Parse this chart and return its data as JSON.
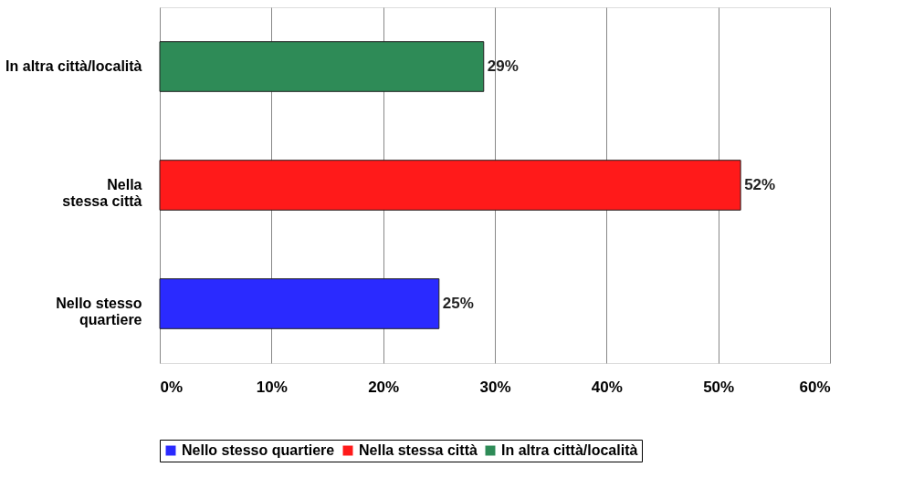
{
  "chart_data": {
    "type": "bar",
    "orientation": "horizontal",
    "categories": [
      "In altra città/località",
      "Nella stessa città",
      "Nello stesso quartiere"
    ],
    "series": [
      {
        "name": "Nello stesso quartiere",
        "color": "#2a2aff",
        "values": [
          null,
          null,
          25
        ],
        "value_labels": [
          null,
          null,
          "25%"
        ]
      },
      {
        "name": "Nella stessa città",
        "color": "#ff1a1a",
        "values": [
          null,
          52,
          null
        ],
        "value_labels": [
          null,
          "52%",
          null
        ]
      },
      {
        "name": "In altra città/località",
        "color": "#2e8b57",
        "values": [
          29,
          null,
          null
        ],
        "value_labels": [
          "29%",
          null,
          null
        ]
      }
    ],
    "xlim": [
      0,
      60
    ],
    "xticks": [
      {
        "value": 0,
        "label": "0%"
      },
      {
        "value": 10,
        "label": "10%"
      },
      {
        "value": 20,
        "label": "20%"
      },
      {
        "value": 30,
        "label": "30%"
      },
      {
        "value": 40,
        "label": "40%"
      },
      {
        "value": 50,
        "label": "50%"
      },
      {
        "value": 60,
        "label": "60%"
      }
    ],
    "grid": "x",
    "legend": "bottom"
  }
}
